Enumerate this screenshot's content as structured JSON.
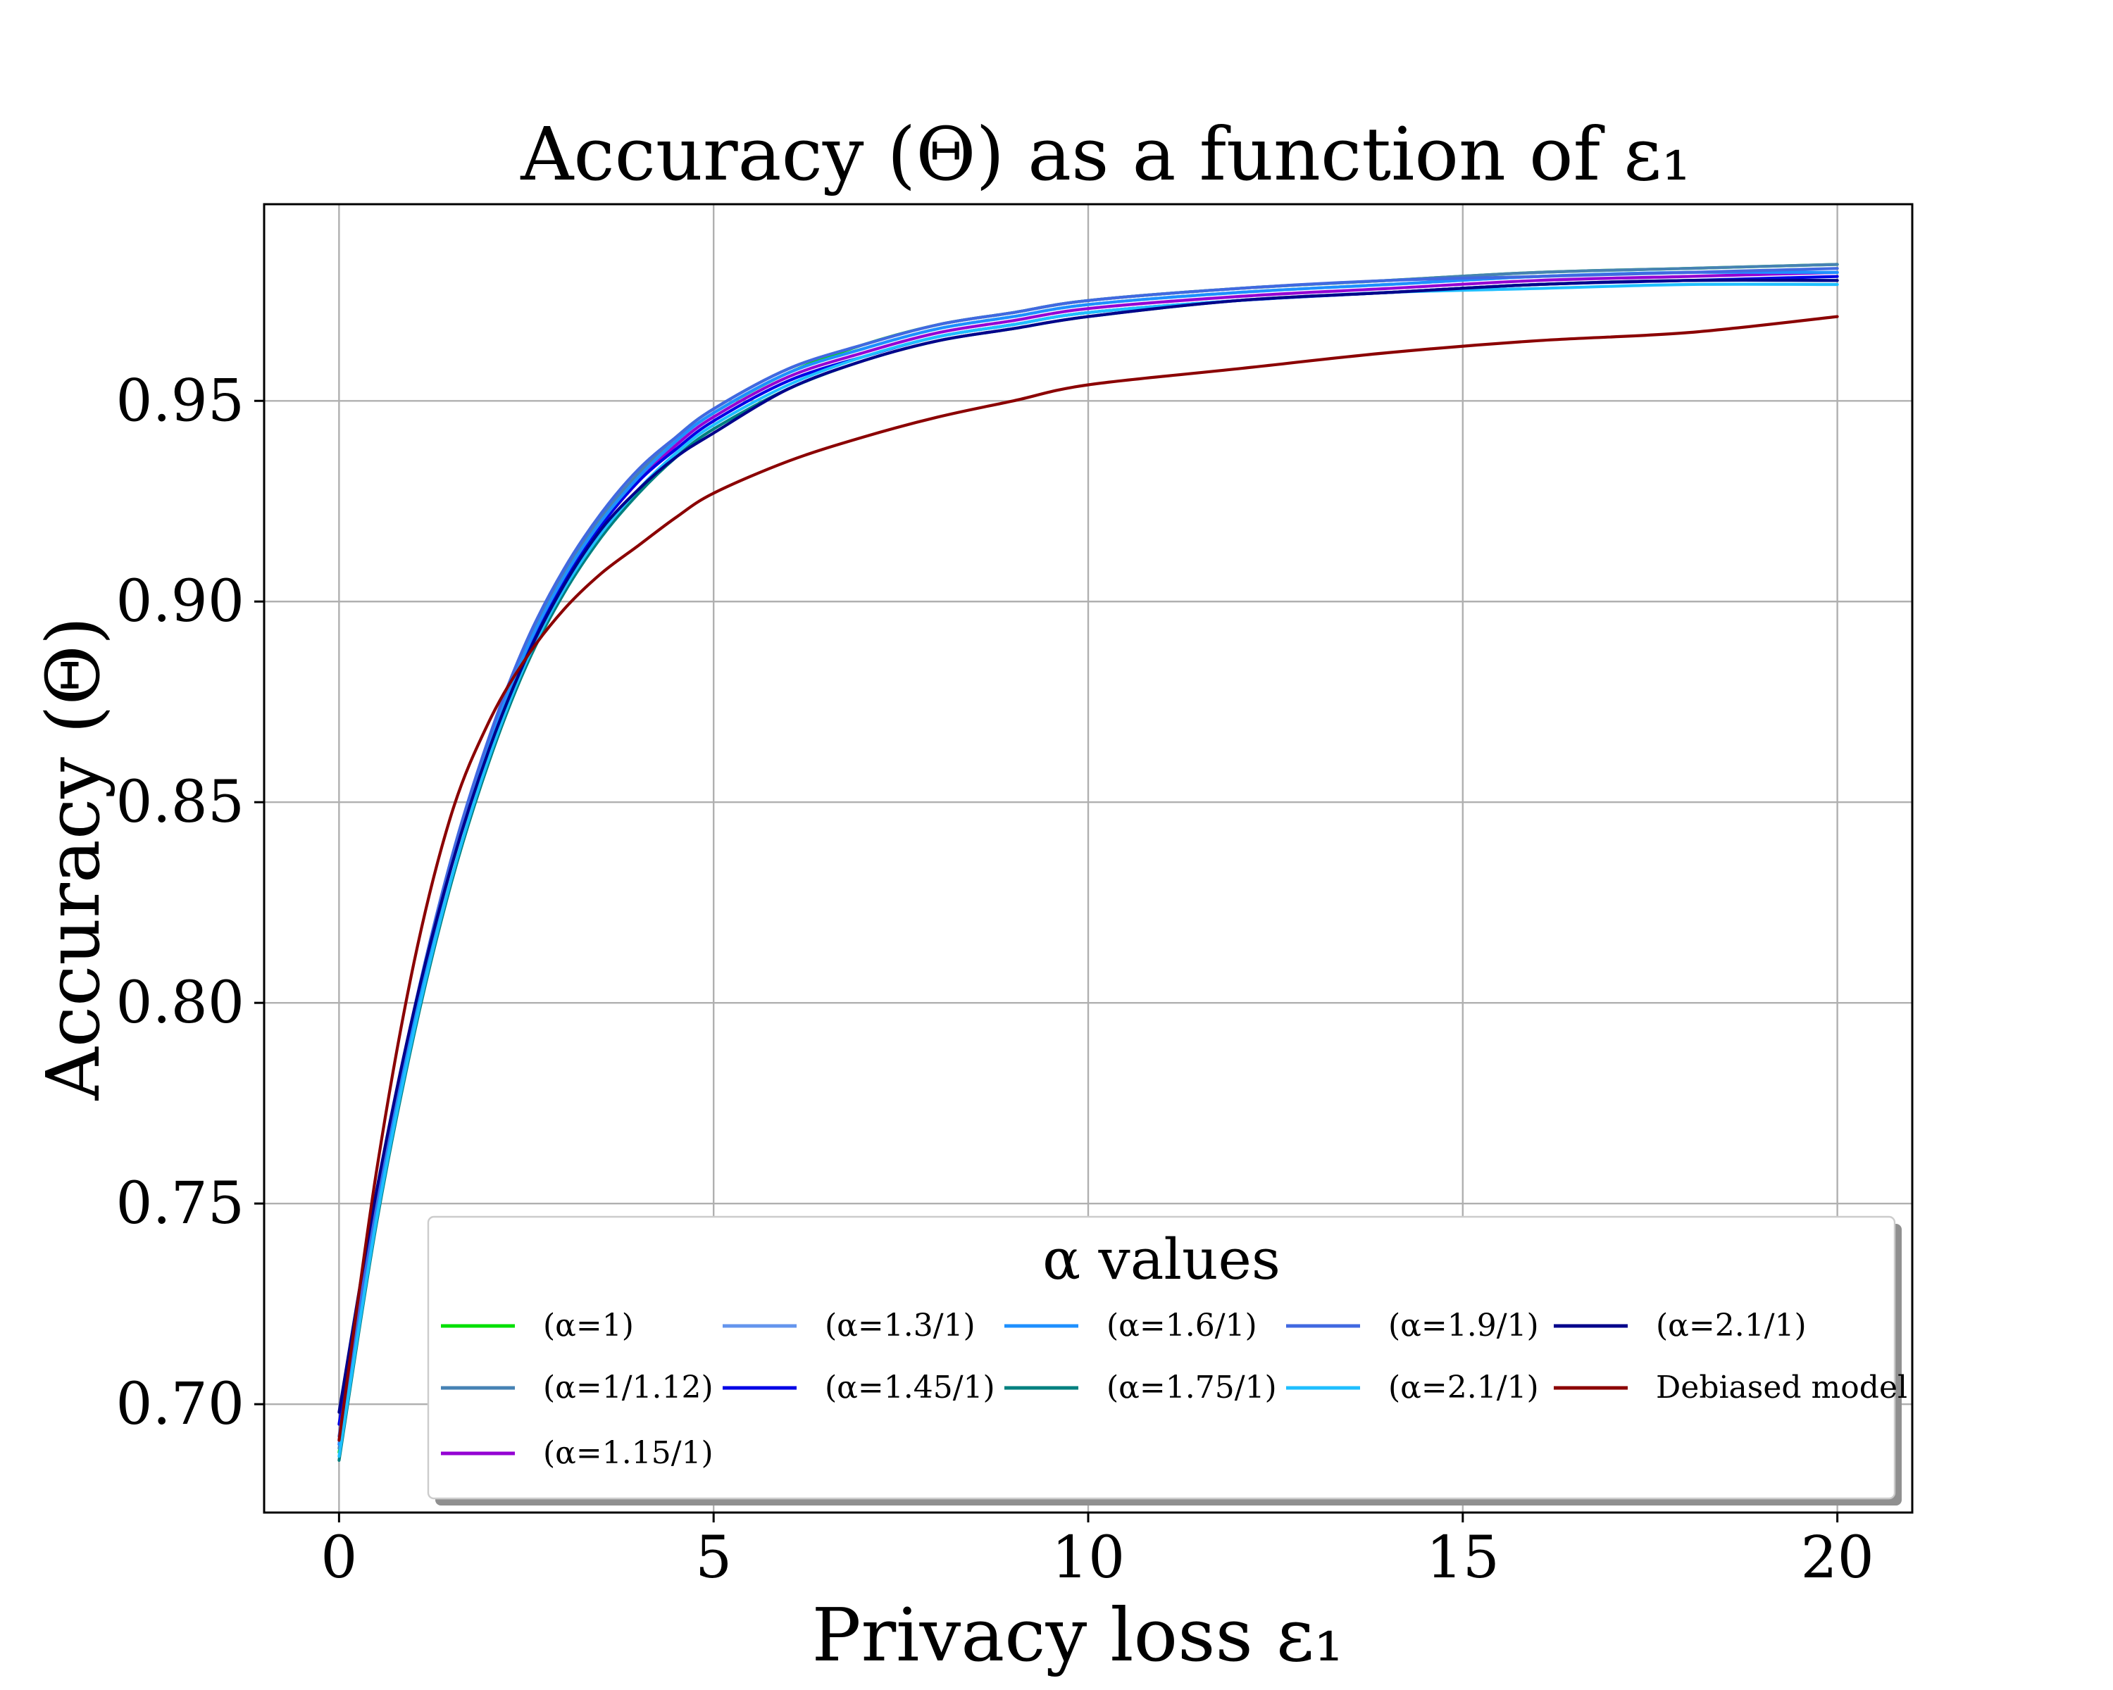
{
  "chart_data": {
    "type": "line",
    "title": "Accuracy (Θ) as a function of ε₁",
    "xlabel": "Privacy loss ε₁",
    "ylabel": "Accuracy (Θ)",
    "xlim": [
      -1,
      21
    ],
    "ylim": [
      0.673,
      0.999
    ],
    "xticks": [
      0,
      5,
      10,
      15,
      20
    ],
    "xtick_labels": [
      "0",
      "5",
      "10",
      "15",
      "20"
    ],
    "yticks": [
      0.7,
      0.75,
      0.8,
      0.85,
      0.9,
      0.95
    ],
    "ytick_labels": [
      "0.70",
      "0.75",
      "0.80",
      "0.85",
      "0.90",
      "0.95"
    ],
    "grid": true,
    "legend": {
      "title": "α values",
      "position": "lower-right",
      "columns": 5
    },
    "x": [
      0,
      0.5,
      1,
      1.5,
      2,
      2.5,
      3,
      3.5,
      4,
      4.5,
      5,
      6,
      7,
      8,
      9,
      10,
      12,
      14,
      16,
      18,
      20
    ],
    "series": [
      {
        "name": "(α=1)",
        "color": "#00e000",
        "values": [
          0.688,
          0.748,
          0.796,
          0.834,
          0.864,
          0.888,
          0.906,
          0.92,
          0.931,
          0.94,
          0.947,
          0.957,
          0.964,
          0.969,
          0.972,
          0.975,
          0.978,
          0.98,
          0.982,
          0.983,
          0.984
        ]
      },
      {
        "name": "(α=1/1.12)",
        "color": "#4682b4",
        "values": [
          0.689,
          0.749,
          0.797,
          0.835,
          0.865,
          0.889,
          0.907,
          0.921,
          0.932,
          0.941,
          0.948,
          0.958,
          0.964,
          0.969,
          0.972,
          0.975,
          0.978,
          0.98,
          0.982,
          0.983,
          0.984
        ]
      },
      {
        "name": "(α=1.15/1)",
        "color": "#9400d3",
        "values": [
          0.69,
          0.749,
          0.796,
          0.834,
          0.864,
          0.887,
          0.905,
          0.919,
          0.93,
          0.939,
          0.946,
          0.956,
          0.962,
          0.967,
          0.97,
          0.973,
          0.976,
          0.978,
          0.98,
          0.981,
          0.982
        ]
      },
      {
        "name": "(α=1.3/1)",
        "color": "#6495ed",
        "values": [
          0.691,
          0.75,
          0.797,
          0.835,
          0.865,
          0.888,
          0.906,
          0.92,
          0.931,
          0.94,
          0.947,
          0.957,
          0.963,
          0.968,
          0.971,
          0.974,
          0.977,
          0.979,
          0.981,
          0.982,
          0.982
        ]
      },
      {
        "name": "(α=1.45/1)",
        "color": "#0000e6",
        "values": [
          0.695,
          0.752,
          0.798,
          0.835,
          0.864,
          0.887,
          0.905,
          0.919,
          0.93,
          0.938,
          0.945,
          0.955,
          0.961,
          0.966,
          0.969,
          0.972,
          0.975,
          0.977,
          0.979,
          0.98,
          0.981
        ]
      },
      {
        "name": "(α=1.6/1)",
        "color": "#1e90ff",
        "values": [
          0.69,
          0.749,
          0.796,
          0.834,
          0.864,
          0.888,
          0.906,
          0.92,
          0.931,
          0.94,
          0.947,
          0.957,
          0.963,
          0.968,
          0.971,
          0.974,
          0.977,
          0.979,
          0.981,
          0.982,
          0.982
        ]
      },
      {
        "name": "(α=1.75/1)",
        "color": "#00807f",
        "values": [
          0.686,
          0.745,
          0.792,
          0.83,
          0.86,
          0.884,
          0.902,
          0.916,
          0.927,
          0.936,
          0.943,
          0.953,
          0.96,
          0.965,
          0.968,
          0.971,
          0.975,
          0.977,
          0.979,
          0.98,
          0.98
        ]
      },
      {
        "name": "(α=1.9/1)",
        "color": "#4169e1",
        "values": [
          0.692,
          0.751,
          0.798,
          0.836,
          0.866,
          0.89,
          0.908,
          0.922,
          0.933,
          0.941,
          0.948,
          0.958,
          0.964,
          0.969,
          0.972,
          0.975,
          0.978,
          0.98,
          0.981,
          0.982,
          0.983
        ]
      },
      {
        "name": "(α=2.1/1)",
        "color": "#1fbfff",
        "values": [
          0.687,
          0.746,
          0.793,
          0.831,
          0.861,
          0.885,
          0.903,
          0.917,
          0.928,
          0.937,
          0.944,
          0.954,
          0.961,
          0.966,
          0.969,
          0.972,
          0.975,
          0.977,
          0.978,
          0.979,
          0.979
        ]
      },
      {
        "name": "(α=2.1/1)",
        "color": "#00008b",
        "values": [
          0.698,
          0.753,
          0.798,
          0.834,
          0.863,
          0.886,
          0.904,
          0.918,
          0.928,
          0.936,
          0.942,
          0.953,
          0.96,
          0.965,
          0.968,
          0.971,
          0.975,
          0.977,
          0.979,
          0.98,
          0.98
        ]
      },
      {
        "name": "Debiased model",
        "color": "#8b0000",
        "values": [
          0.691,
          0.758,
          0.81,
          0.847,
          0.87,
          0.886,
          0.898,
          0.907,
          0.914,
          0.921,
          0.927,
          0.935,
          0.941,
          0.946,
          0.95,
          0.954,
          0.958,
          0.962,
          0.965,
          0.967,
          0.971
        ]
      }
    ]
  }
}
